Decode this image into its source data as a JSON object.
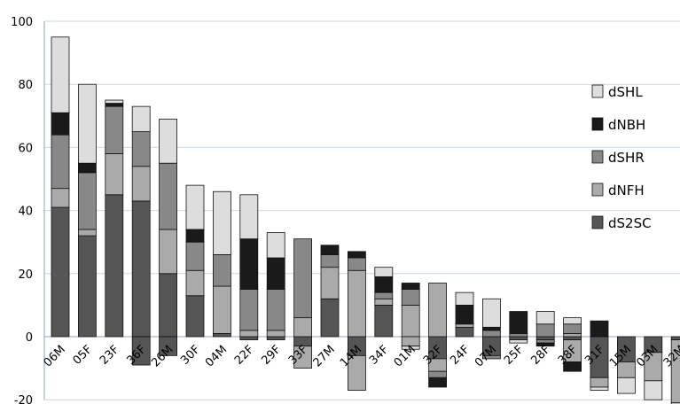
{
  "chart_data": {
    "type": "bar",
    "stacked": true,
    "title": "",
    "xlabel": "",
    "ylabel": "",
    "ylim": [
      -20,
      100
    ],
    "yticks": [
      -20,
      0,
      20,
      40,
      60,
      80,
      100
    ],
    "grid": "horizontal",
    "legend_position": "right",
    "categories": [
      "06M",
      "05F",
      "23F",
      "36F",
      "26M",
      "30F",
      "04M",
      "22F",
      "29F",
      "33F",
      "27M",
      "14M",
      "34F",
      "01M",
      "32F",
      "24F",
      "07M",
      "25F",
      "28F",
      "38F",
      "31F",
      "15M",
      "03M",
      "32M"
    ],
    "series": [
      {
        "name": "dS2SC",
        "color": "#555555",
        "values": [
          41,
          32,
          45,
          43,
          20,
          13,
          1,
          0,
          0,
          0,
          12,
          0,
          10,
          0,
          0,
          3,
          0,
          0,
          0,
          0,
          0,
          0,
          0,
          0
        ],
        "neg": [
          0,
          0,
          0,
          -9,
          -6,
          0,
          0,
          -1,
          -1,
          -3,
          0,
          -6,
          0,
          0,
          -7,
          0,
          -6,
          -1,
          -1,
          -1,
          -13,
          -8,
          -5,
          -1
        ]
      },
      {
        "name": "dNFH",
        "color": "#aaaaaa",
        "values": [
          6,
          2,
          13,
          11,
          14,
          8,
          15,
          2,
          2,
          6,
          10,
          21,
          2,
          10,
          17,
          1,
          0,
          0,
          0,
          1,
          0,
          0,
          0,
          0
        ],
        "neg": [
          0,
          0,
          0,
          0,
          0,
          0,
          0,
          0,
          0,
          -7,
          0,
          -11,
          0,
          -3,
          -4,
          0,
          0,
          0,
          0,
          -7,
          -3,
          -5,
          -9,
          -20
        ]
      },
      {
        "name": "dSHR",
        "color": "#888888",
        "values": [
          17,
          18,
          15,
          11,
          21,
          9,
          10,
          13,
          13,
          25,
          4,
          4,
          2,
          5,
          0,
          0,
          2,
          1,
          4,
          3,
          0,
          0,
          0,
          0
        ],
        "neg": [
          0,
          0,
          0,
          0,
          0,
          0,
          0,
          0,
          0,
          0,
          0,
          0,
          0,
          0,
          -2,
          0,
          -1,
          0,
          -1,
          0,
          0,
          0,
          0,
          0
        ]
      },
      {
        "name": "dNBH",
        "color": "#1a1a1a",
        "values": [
          7,
          3,
          1,
          0,
          0,
          4,
          0,
          16,
          10,
          0,
          3,
          2,
          5,
          2,
          0,
          6,
          1,
          7,
          0,
          0,
          5,
          0,
          0,
          0
        ],
        "neg": [
          0,
          0,
          0,
          0,
          0,
          0,
          0,
          0,
          0,
          0,
          0,
          0,
          0,
          0,
          -3,
          0,
          0,
          0,
          -1,
          -3,
          0,
          0,
          0,
          0
        ]
      },
      {
        "name": "dSHL",
        "color": "#dddddd",
        "values": [
          24,
          25,
          1,
          8,
          14,
          14,
          20,
          14,
          8,
          0,
          0,
          0,
          3,
          0,
          0,
          4,
          9,
          0,
          4,
          2,
          0,
          0,
          0,
          0
        ],
        "neg": [
          0,
          0,
          0,
          0,
          0,
          0,
          0,
          0,
          0,
          0,
          0,
          0,
          0,
          -1,
          0,
          0,
          0,
          -1,
          0,
          0,
          -1,
          -5,
          -6,
          -4
        ]
      }
    ],
    "legend_order": [
      "dSHL",
      "dNBH",
      "dSHR",
      "dNFH",
      "dS2SC"
    ]
  }
}
